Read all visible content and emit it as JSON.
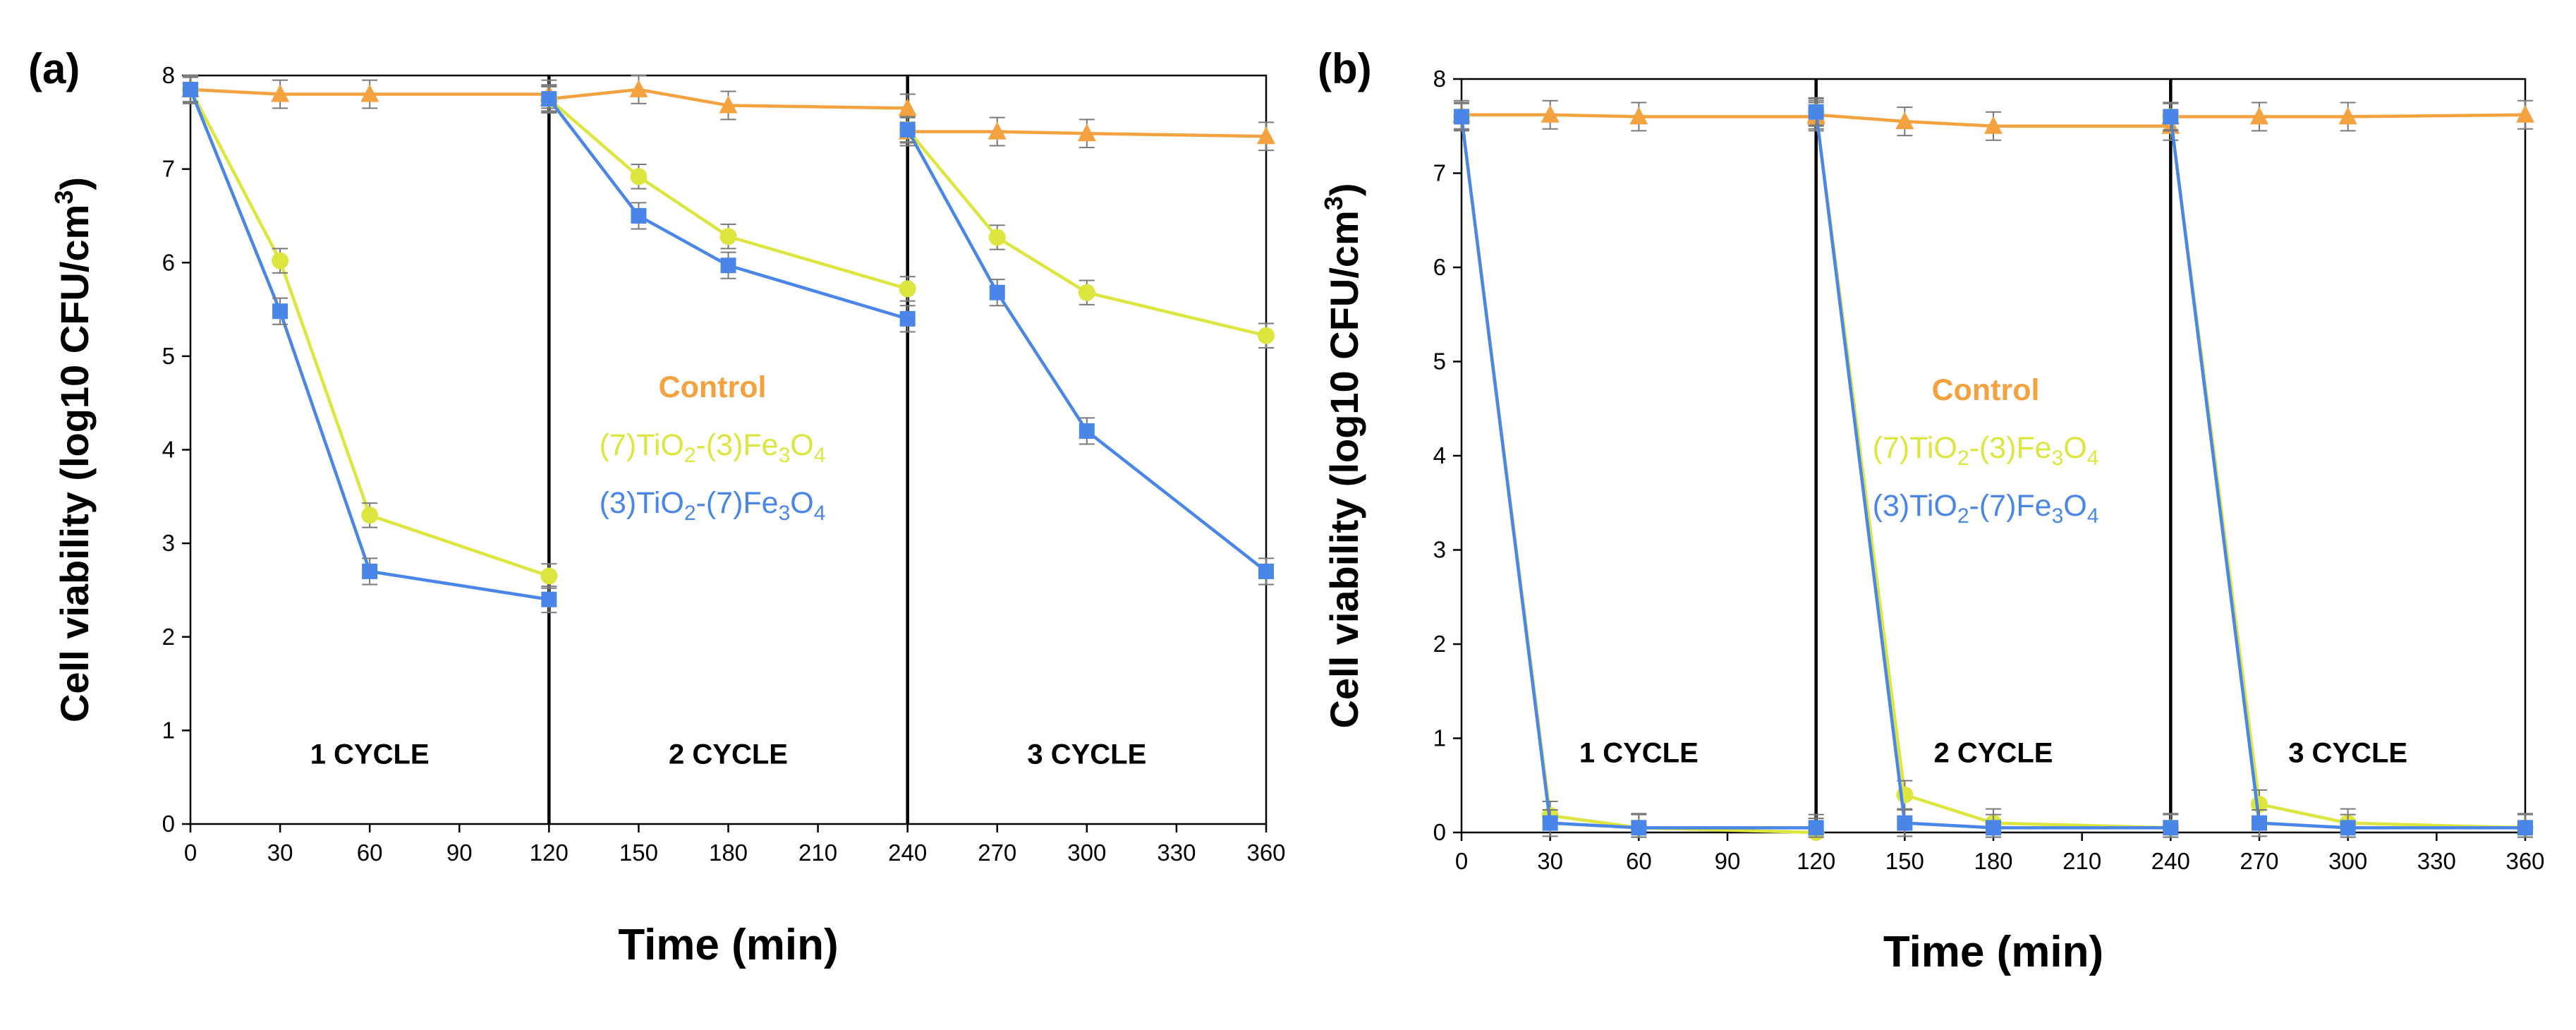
{
  "figure": {
    "colors": {
      "control": "#F4A240",
      "series_7_3": "#DCE63F",
      "series_3_7": "#4A86E8",
      "errorbar": "#7a7a7a",
      "axis": "#000000"
    }
  },
  "chart_data": [
    {
      "type": "line",
      "panel_label": "(a)",
      "xlabel": "Time (min)",
      "ylabel_main": "Cell viability (log10 CFU/cm",
      "ylabel_sup": "3",
      "ylabel_close": ")",
      "xlim": [
        0,
        360
      ],
      "ylim": [
        0,
        8
      ],
      "xticks": [
        0,
        30,
        60,
        90,
        120,
        150,
        180,
        210,
        240,
        270,
        300,
        330,
        360
      ],
      "yticks": [
        0,
        1,
        2,
        3,
        4,
        5,
        6,
        7,
        8
      ],
      "cycle_dividers": [
        120,
        240
      ],
      "cycle_labels": [
        {
          "x": 60,
          "y": 0.75,
          "text": "1 CYCLE"
        },
        {
          "x": 180,
          "y": 0.75,
          "text": "2 CYCLE"
        },
        {
          "x": 300,
          "y": 0.75,
          "text": "3 CYCLE"
        }
      ],
      "legend": [
        {
          "key": "control",
          "parts": [
            {
              "t": "Control"
            }
          ]
        },
        {
          "key": "series_7_3",
          "parts": [
            {
              "t": "(7)TiO"
            },
            {
              "t": "2",
              "sub": true
            },
            {
              "t": "-(3)Fe"
            },
            {
              "t": "3",
              "sub": true
            },
            {
              "t": "O"
            },
            {
              "t": "4",
              "sub": true
            }
          ]
        },
        {
          "key": "series_3_7",
          "parts": [
            {
              "t": "(3)TiO"
            },
            {
              "t": "2",
              "sub": true
            },
            {
              "t": "-(7)Fe"
            },
            {
              "t": "3",
              "sub": true
            },
            {
              "t": "O"
            },
            {
              "t": "4",
              "sub": true
            }
          ]
        }
      ],
      "series": [
        {
          "name": "Control",
          "key": "control",
          "marker": "triangle",
          "segments": [
            [
              [
                0,
                7.85
              ],
              [
                30,
                7.8
              ],
              [
                60,
                7.8
              ],
              [
                120,
                7.8
              ]
            ],
            [
              [
                120,
                7.75
              ],
              [
                150,
                7.85
              ],
              [
                180,
                7.68
              ],
              [
                240,
                7.65
              ]
            ],
            [
              [
                240,
                7.4
              ],
              [
                270,
                7.4
              ],
              [
                300,
                7.38
              ],
              [
                360,
                7.35
              ]
            ]
          ],
          "err": 0.15
        },
        {
          "name": "(7)TiO2-(3)Fe3O4",
          "key": "series_7_3",
          "marker": "circle",
          "segments": [
            [
              [
                0,
                7.85
              ],
              [
                30,
                6.02
              ],
              [
                60,
                3.3
              ],
              [
                120,
                2.65
              ]
            ],
            [
              [
                120,
                7.75
              ],
              [
                150,
                6.92
              ],
              [
                180,
                6.28
              ],
              [
                240,
                5.72
              ]
            ],
            [
              [
                240,
                7.42
              ],
              [
                270,
                6.27
              ],
              [
                300,
                5.68
              ],
              [
                360,
                5.22
              ]
            ]
          ],
          "err": 0.13
        },
        {
          "name": "(3)TiO2-(7)Fe3O4",
          "key": "series_3_7",
          "marker": "square",
          "segments": [
            [
              [
                0,
                7.85
              ],
              [
                30,
                5.48
              ],
              [
                60,
                2.7
              ],
              [
                120,
                2.4
              ]
            ],
            [
              [
                120,
                7.75
              ],
              [
                150,
                6.5
              ],
              [
                180,
                5.97
              ],
              [
                240,
                5.4
              ]
            ],
            [
              [
                240,
                7.42
              ],
              [
                270,
                5.68
              ],
              [
                300,
                4.2
              ],
              [
                360,
                2.7
              ]
            ]
          ],
          "err": 0.14
        }
      ]
    },
    {
      "type": "line",
      "panel_label": "(b)",
      "xlabel": "Time (min)",
      "ylabel_main": "Cell viability (log10 CFU/cm",
      "ylabel_sup": "3",
      "ylabel_close": ")",
      "xlim": [
        0,
        360
      ],
      "ylim": [
        0,
        8
      ],
      "xticks": [
        0,
        30,
        60,
        90,
        120,
        150,
        180,
        210,
        240,
        270,
        300,
        330,
        360
      ],
      "yticks": [
        0,
        1,
        2,
        3,
        4,
        5,
        6,
        7,
        8
      ],
      "cycle_dividers": [
        120,
        240
      ],
      "cycle_labels": [
        {
          "x": 60,
          "y": 0.85,
          "text": "1 CYCLE"
        },
        {
          "x": 180,
          "y": 0.85,
          "text": "2 CYCLE"
        },
        {
          "x": 300,
          "y": 0.85,
          "text": "3 CYCLE"
        }
      ],
      "legend": [
        {
          "key": "control",
          "parts": [
            {
              "t": "Control"
            }
          ]
        },
        {
          "key": "series_7_3",
          "parts": [
            {
              "t": "(7)TiO"
            },
            {
              "t": "2",
              "sub": true
            },
            {
              "t": "-(3)Fe"
            },
            {
              "t": "3",
              "sub": true
            },
            {
              "t": "O"
            },
            {
              "t": "4",
              "sub": true
            }
          ]
        },
        {
          "key": "series_3_7",
          "parts": [
            {
              "t": "(3)TiO"
            },
            {
              "t": "2",
              "sub": true
            },
            {
              "t": "-(7)Fe"
            },
            {
              "t": "3",
              "sub": true
            },
            {
              "t": "O"
            },
            {
              "t": "4",
              "sub": true
            }
          ]
        }
      ],
      "series": [
        {
          "name": "Control",
          "key": "control",
          "marker": "triangle",
          "segments": [
            [
              [
                0,
                7.62
              ],
              [
                30,
                7.62
              ],
              [
                60,
                7.6
              ],
              [
                120,
                7.6
              ]
            ],
            [
              [
                120,
                7.62
              ],
              [
                150,
                7.55
              ],
              [
                180,
                7.5
              ],
              [
                240,
                7.5
              ]
            ],
            [
              [
                240,
                7.6
              ],
              [
                270,
                7.6
              ],
              [
                300,
                7.6
              ],
              [
                360,
                7.62
              ]
            ]
          ],
          "err": 0.15
        },
        {
          "name": "(7)TiO2-(3)Fe3O4",
          "key": "series_7_3",
          "marker": "circle",
          "segments": [
            [
              [
                0,
                7.6
              ],
              [
                30,
                0.18
              ],
              [
                60,
                0.05
              ],
              [
                120,
                0.0
              ]
            ],
            [
              [
                120,
                7.65
              ],
              [
                150,
                0.4
              ],
              [
                180,
                0.1
              ],
              [
                240,
                0.05
              ]
            ],
            [
              [
                240,
                7.6
              ],
              [
                270,
                0.3
              ],
              [
                300,
                0.1
              ],
              [
                360,
                0.05
              ]
            ]
          ],
          "err": 0.15
        },
        {
          "name": "(3)TiO2-(7)Fe3O4",
          "key": "series_3_7",
          "marker": "square",
          "segments": [
            [
              [
                0,
                7.6
              ],
              [
                30,
                0.1
              ],
              [
                60,
                0.05
              ],
              [
                120,
                0.05
              ]
            ],
            [
              [
                120,
                7.65
              ],
              [
                150,
                0.1
              ],
              [
                180,
                0.05
              ],
              [
                240,
                0.05
              ]
            ],
            [
              [
                240,
                7.6
              ],
              [
                270,
                0.1
              ],
              [
                300,
                0.05
              ],
              [
                360,
                0.05
              ]
            ]
          ],
          "err": 0.14
        }
      ]
    }
  ]
}
